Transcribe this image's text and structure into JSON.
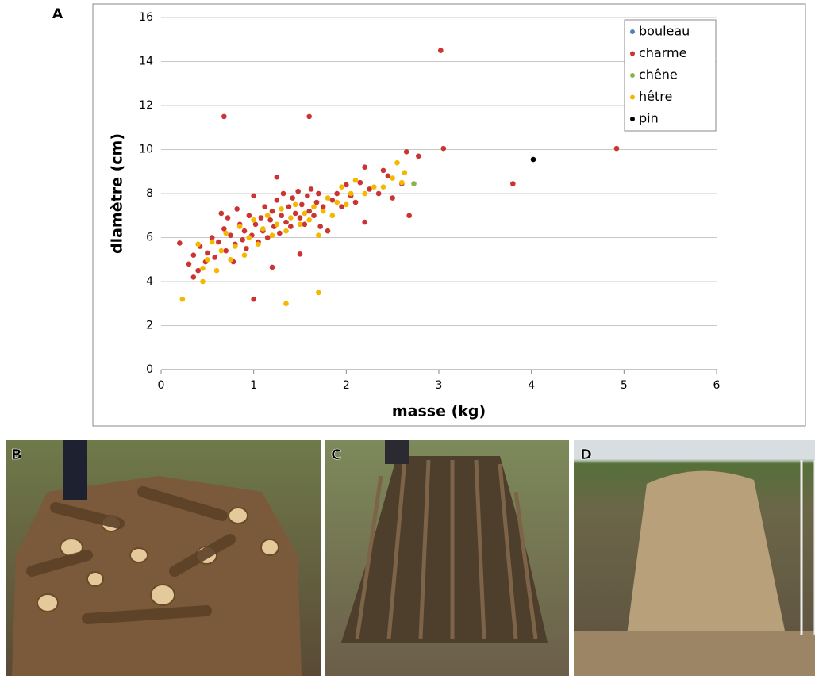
{
  "panel_label": "A",
  "chart_data": {
    "type": "scatter",
    "x_label": "masse (kg)",
    "y_label": "diamètre (cm)",
    "xlim": [
      0,
      6
    ],
    "xticks": [
      0,
      1,
      2,
      3,
      4,
      5,
      6
    ],
    "ylim": [
      0,
      16
    ],
    "yticks": [
      0,
      2,
      4,
      6,
      8,
      10,
      12,
      14,
      16
    ],
    "grid": true,
    "legend": "upper right",
    "series": [
      {
        "name": "bouleau",
        "color": "#4f81bd",
        "x": [],
        "values": []
      },
      {
        "name": "charme",
        "color": "#cc3333",
        "x": [
          0.2,
          0.68,
          1.6,
          3.02,
          3.05,
          4.92,
          3.8,
          2.68,
          2.65,
          2.78,
          1.0,
          1.2,
          1.5,
          2.2,
          2.2,
          2.4,
          2.45,
          2.6,
          1.25,
          0.35,
          0.3,
          0.35,
          0.4,
          0.42,
          0.48,
          0.5,
          0.55,
          0.58,
          0.62,
          0.65,
          0.68,
          0.7,
          0.72,
          0.75,
          0.78,
          0.8,
          0.82,
          0.85,
          0.88,
          0.9,
          0.92,
          0.95,
          0.98,
          1.0,
          1.02,
          1.05,
          1.08,
          1.1,
          1.12,
          1.15,
          1.18,
          1.2,
          1.22,
          1.25,
          1.28,
          1.3,
          1.32,
          1.35,
          1.38,
          1.4,
          1.42,
          1.45,
          1.48,
          1.5,
          1.52,
          1.55,
          1.58,
          1.6,
          1.62,
          1.65,
          1.68,
          1.7,
          1.72,
          1.75,
          1.8,
          1.85,
          1.9,
          1.95,
          2.0,
          2.05,
          2.1,
          2.15,
          2.25,
          2.35,
          2.5
        ],
        "values": [
          5.75,
          11.5,
          11.5,
          14.5,
          10.05,
          10.05,
          8.45,
          7.0,
          9.9,
          9.7,
          3.2,
          4.65,
          5.25,
          9.2,
          6.7,
          9.05,
          8.8,
          8.45,
          8.75,
          4.2,
          4.8,
          5.2,
          4.5,
          5.6,
          4.9,
          5.3,
          6.0,
          5.1,
          5.8,
          7.1,
          6.4,
          5.4,
          6.9,
          6.1,
          4.9,
          5.7,
          7.3,
          6.6,
          5.9,
          6.3,
          5.5,
          7.0,
          6.1,
          7.9,
          6.6,
          5.8,
          6.9,
          6.3,
          7.4,
          6.0,
          6.8,
          7.2,
          6.5,
          7.7,
          6.2,
          7.0,
          8.0,
          6.7,
          7.4,
          6.5,
          7.8,
          7.1,
          8.1,
          6.9,
          7.5,
          6.6,
          7.9,
          7.2,
          8.2,
          7.0,
          7.6,
          8.0,
          6.5,
          7.4,
          6.3,
          7.7,
          8.0,
          7.4,
          8.4,
          7.9,
          7.6,
          8.5,
          8.2,
          8.0,
          7.8
        ]
      },
      {
        "name": "chêne",
        "color": "#8db34a",
        "x": [
          2.73
        ],
        "values": [
          8.45
        ]
      },
      {
        "name": "hêtre",
        "color": "#f5b800",
        "x": [
          0.23,
          1.35,
          1.7,
          2.55,
          2.63,
          0.45,
          0.4,
          0.45,
          0.5,
          0.55,
          0.6,
          0.65,
          0.7,
          0.75,
          0.8,
          0.85,
          0.9,
          0.95,
          1.0,
          1.05,
          1.1,
          1.15,
          1.2,
          1.25,
          1.3,
          1.35,
          1.4,
          1.45,
          1.5,
          1.55,
          1.6,
          1.65,
          1.7,
          1.75,
          1.8,
          1.85,
          1.9,
          1.95,
          2.0,
          2.05,
          2.1,
          2.2,
          2.3,
          2.4,
          2.5,
          2.6
        ],
        "values": [
          3.2,
          3.0,
          3.5,
          9.4,
          8.95,
          4.0,
          5.7,
          4.6,
          5.0,
          5.8,
          4.5,
          5.4,
          6.2,
          5.0,
          5.6,
          6.5,
          5.2,
          6.0,
          6.8,
          5.7,
          6.4,
          7.0,
          6.1,
          6.6,
          7.3,
          6.3,
          6.9,
          7.5,
          6.6,
          7.1,
          6.8,
          7.4,
          6.1,
          7.2,
          7.8,
          7.0,
          7.6,
          8.3,
          7.5,
          8.0,
          8.6,
          8.0,
          8.3,
          8.3,
          8.7,
          8.5
        ]
      },
      {
        "name": "pin",
        "color": "#000000",
        "x": [
          4.02
        ],
        "values": [
          9.55
        ]
      }
    ]
  },
  "photos": [
    {
      "label": "B"
    },
    {
      "label": "C"
    },
    {
      "label": "D"
    }
  ]
}
